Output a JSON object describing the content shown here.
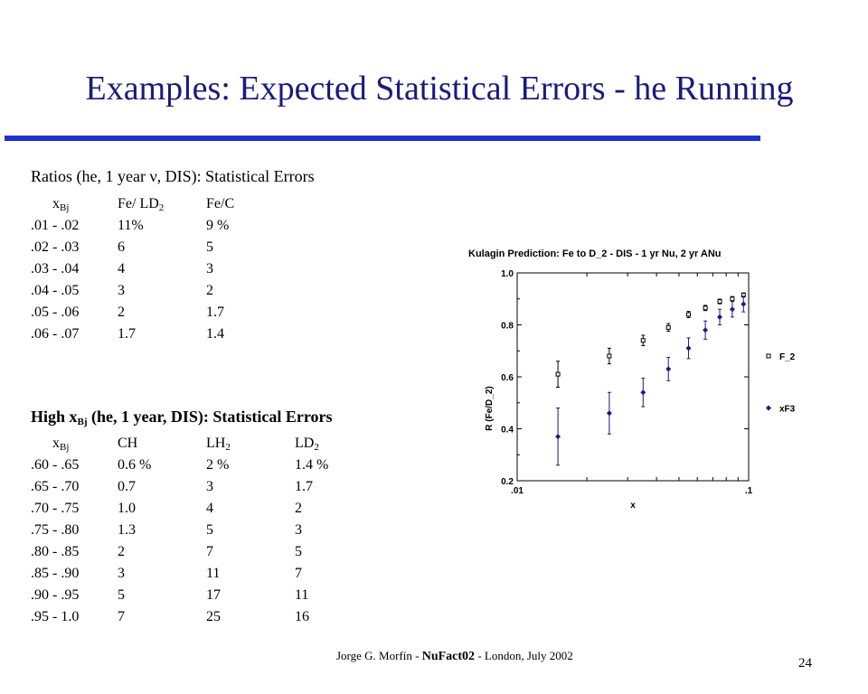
{
  "slide": {
    "title": "Examples: Expected Statistical Errors - he Running",
    "page_number": "24",
    "footer": {
      "author": "Jorge G. Morfín -",
      "conference": "NuFact02",
      "rest": "- London, July 2002"
    }
  },
  "low_x": {
    "heading_pre": "Ratios (he, 1 year ",
    "heading_nu": "ν",
    "heading_post": ", DIS): Statistical Errors",
    "col_x": "x",
    "col_x_sub": "Bj",
    "col_fe_ld": "Fe/ LD",
    "col_fe_ld_sub": "2",
    "col_fe_c": "Fe/C",
    "rows": [
      [
        ".01 - .02",
        "11%",
        "9 %"
      ],
      [
        ".02 - .03",
        "6",
        "5"
      ],
      [
        ".03 - .04",
        "4",
        "3"
      ],
      [
        ".04 - .05",
        "3",
        "2"
      ],
      [
        ".05 - .06",
        "2",
        "1.7"
      ],
      [
        ".06 - .07",
        "1.7",
        "1.4"
      ]
    ]
  },
  "high_x": {
    "heading_pre": "High x",
    "heading_sub": "Bj",
    "heading_post": " (he, 1 year, DIS): Statistical Errors",
    "col_x": "x",
    "col_x_sub": "Bj",
    "col_ch": "CH",
    "col_lh": "LH",
    "col_lh_sub": "2",
    "col_ld": "LD",
    "col_ld_sub": "2",
    "rows": [
      [
        ".60 - .65",
        "0.6 %",
        "2 %",
        "1.4 %"
      ],
      [
        ".65 - .70",
        "0.7",
        "3",
        "1.7"
      ],
      [
        ".70 - .75",
        "1.0",
        "4",
        "2"
      ],
      [
        ".75 - .80",
        "1.3",
        "5",
        "3"
      ],
      [
        ".80 - .85",
        "2",
        "7",
        "5"
      ],
      [
        ".85 - .90",
        "3",
        "11",
        "7"
      ],
      [
        ".90 - .95",
        "5",
        "17",
        "11"
      ],
      [
        ".95 - 1.0",
        "7",
        "25",
        "16"
      ]
    ]
  },
  "chart_data": {
    "type": "scatter",
    "title": "Kulagin Prediction: Fe to D_2 - DIS - 1 yr Nu, 2 yr ANu",
    "xlabel": "x",
    "ylabel": "R (Fe/D_2)",
    "xscale": "log",
    "xlim": [
      0.01,
      0.1
    ],
    "ylim": [
      0.2,
      1.0
    ],
    "x_tick_labels": [
      ".01",
      ".1"
    ],
    "y_tick_labels": [
      "0.2",
      "0.4",
      "0.6",
      "0.8",
      "1.0"
    ],
    "y_ticks": [
      0.2,
      0.4,
      0.6,
      0.8,
      1.0
    ],
    "legend_position": "right",
    "series": [
      {
        "name": "F_2",
        "marker": "open-square",
        "color": "#000000",
        "points": [
          {
            "x": 0.015,
            "y": 0.61,
            "err": 0.05
          },
          {
            "x": 0.025,
            "y": 0.68,
            "err": 0.03
          },
          {
            "x": 0.035,
            "y": 0.74,
            "err": 0.02
          },
          {
            "x": 0.045,
            "y": 0.79,
            "err": 0.015
          },
          {
            "x": 0.055,
            "y": 0.84,
            "err": 0.012
          },
          {
            "x": 0.065,
            "y": 0.865,
            "err": 0.01
          },
          {
            "x": 0.075,
            "y": 0.89,
            "err": 0.009
          },
          {
            "x": 0.085,
            "y": 0.9,
            "err": 0.009
          },
          {
            "x": 0.095,
            "y": 0.915,
            "err": 0.008
          }
        ]
      },
      {
        "name": "xF3",
        "marker": "filled-diamond",
        "color": "#1a1a80",
        "points": [
          {
            "x": 0.015,
            "y": 0.37,
            "err": 0.11
          },
          {
            "x": 0.025,
            "y": 0.46,
            "err": 0.08
          },
          {
            "x": 0.035,
            "y": 0.54,
            "err": 0.055
          },
          {
            "x": 0.045,
            "y": 0.63,
            "err": 0.045
          },
          {
            "x": 0.055,
            "y": 0.71,
            "err": 0.04
          },
          {
            "x": 0.065,
            "y": 0.78,
            "err": 0.035
          },
          {
            "x": 0.075,
            "y": 0.83,
            "err": 0.03
          },
          {
            "x": 0.085,
            "y": 0.86,
            "err": 0.03
          },
          {
            "x": 0.095,
            "y": 0.88,
            "err": 0.03
          }
        ]
      }
    ]
  }
}
